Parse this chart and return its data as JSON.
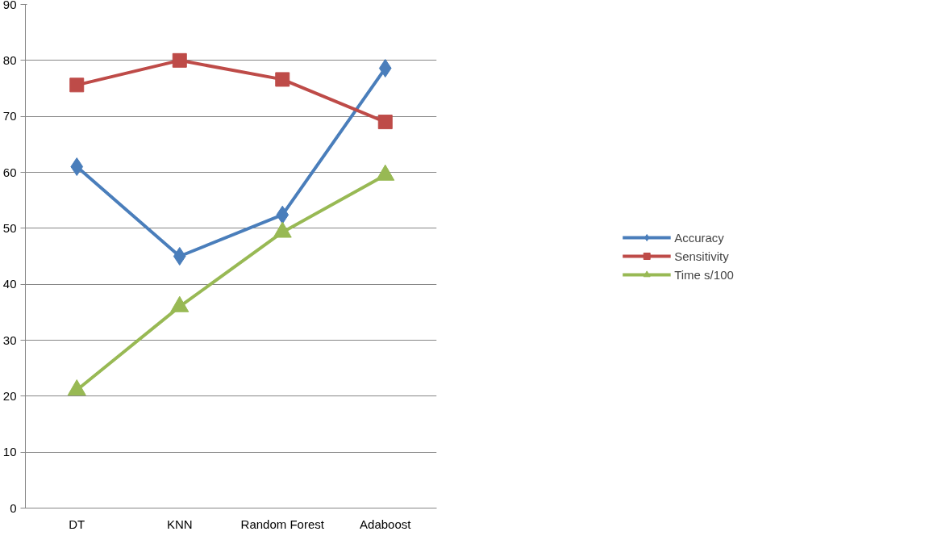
{
  "chart_data": {
    "type": "line",
    "categories": [
      "DT",
      "KNN",
      "Random Forest",
      "Adaboost"
    ],
    "series": [
      {
        "name": "Accuracy",
        "color": "#4a7ebb",
        "marker": "diamond",
        "values": [
          61.0,
          45.0,
          52.4,
          78.6
        ]
      },
      {
        "name": "Sensitivity",
        "color": "#be4b48",
        "marker": "square",
        "values": [
          75.6,
          80.0,
          76.6,
          69.0
        ]
      },
      {
        "name": "Time s/100",
        "color": "#98b954",
        "marker": "triangle",
        "values": [
          21.1,
          36.0,
          49.3,
          59.5
        ]
      }
    ],
    "ylim": [
      0,
      90
    ],
    "yticks": [
      0,
      10,
      20,
      30,
      40,
      50,
      60,
      70,
      80,
      90
    ],
    "grid": "y",
    "legend": "right",
    "line_style": "solid"
  }
}
